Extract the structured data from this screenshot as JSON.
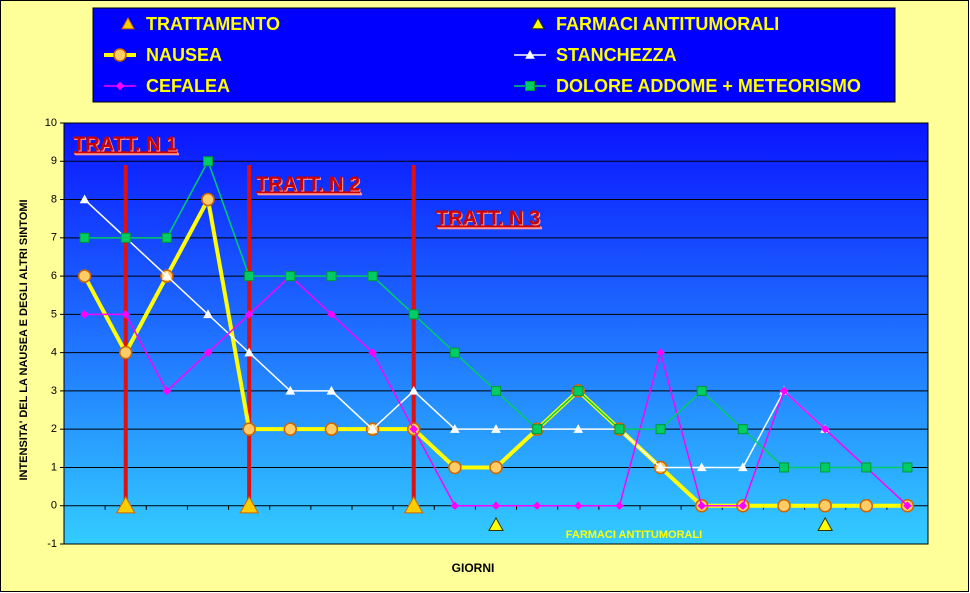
{
  "chart_data": {
    "type": "line",
    "y_label": "INTENSITA' DEL LA NAUSEA E DEGLI ALTRI SINTOMI",
    "x_label": "GIORNI",
    "categories": [
      null,
      null,
      null,
      null,
      null,
      null,
      null,
      null,
      null,
      null,
      null,
      null,
      null,
      null,
      null,
      null,
      null,
      null,
      null,
      null,
      null
    ],
    "ylim": [
      -1,
      10
    ],
    "yticks": [
      -1,
      0,
      1,
      2,
      3,
      4,
      5,
      6,
      7,
      8,
      9,
      10
    ],
    "grid": true,
    "series": [
      {
        "name": "TRATTAMENTO",
        "color": "#ffcc00",
        "marker": "triangle",
        "line": false,
        "values": [
          null,
          0,
          null,
          null,
          0,
          null,
          null,
          null,
          0,
          null,
          null,
          null,
          null,
          null,
          null,
          null,
          null,
          null,
          null,
          null,
          null
        ]
      },
      {
        "name": "FARMACI ANTITUMORALI",
        "color": "#ffff00",
        "marker": "triangle",
        "line": false,
        "values": [
          null,
          null,
          null,
          null,
          null,
          null,
          null,
          null,
          null,
          null,
          -0.5,
          null,
          null,
          null,
          null,
          null,
          null,
          null,
          -0.5,
          null,
          null
        ]
      },
      {
        "name": "NAUSEA",
        "color": "#ffff00",
        "marker": "circle",
        "values": [
          6,
          4,
          6,
          8,
          2,
          2,
          2,
          2,
          2,
          1,
          1,
          2,
          3,
          2,
          1,
          0,
          0,
          0,
          0,
          0,
          0
        ]
      },
      {
        "name": "STANCHEZZA",
        "color": "#ffffff",
        "marker": "triangle",
        "values": [
          8,
          7,
          6,
          5,
          4,
          3,
          3,
          2,
          3,
          2,
          2,
          2,
          2,
          2,
          1,
          1,
          1,
          3,
          2,
          null,
          null
        ]
      },
      {
        "name": "CEFALEA",
        "color": "#ff00ff",
        "marker": "diamond",
        "values": [
          5,
          5,
          3,
          4,
          5,
          6,
          5,
          4,
          2,
          0,
          0,
          0,
          0,
          0,
          4,
          0,
          0,
          3,
          2,
          1,
          0
        ]
      },
      {
        "name": "DOLORE ADDOME + METEORISMO",
        "color": "#00cc66",
        "marker": "square",
        "values": [
          7,
          7,
          7,
          9,
          6,
          6,
          6,
          6,
          5,
          4,
          3,
          2,
          3,
          2,
          2,
          3,
          2,
          1,
          1,
          1,
          1
        ]
      }
    ],
    "annotations": [
      "TRATT. N 1",
      "TRATT. N 2",
      "TRATT. N 3",
      "FARMACI ANTITUMORALI"
    ]
  }
}
